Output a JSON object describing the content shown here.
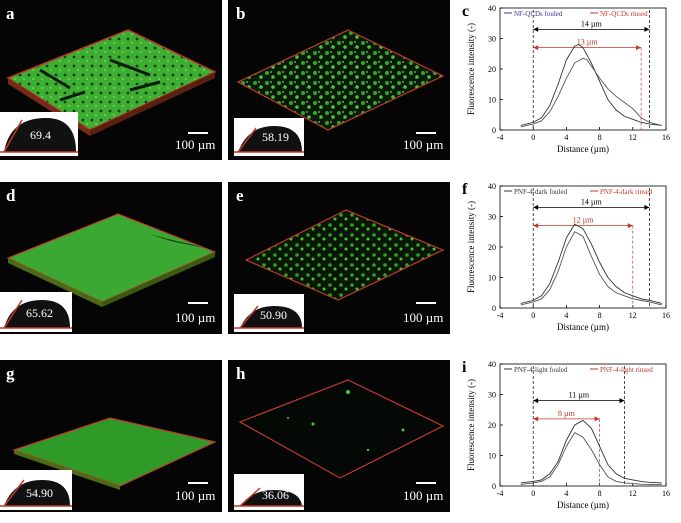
{
  "images": {
    "a": {
      "label": "a",
      "angle": "69.4",
      "scale": "100 µm"
    },
    "b": {
      "label": "b",
      "angle": "58.19",
      "scale": "100 µm"
    },
    "d": {
      "label": "d",
      "angle": "65.62",
      "scale": "100 µm"
    },
    "e": {
      "label": "e",
      "angle": "50.90",
      "scale": "100 µm"
    },
    "g": {
      "label": "g",
      "angle": "54.90",
      "scale": "100 µm"
    },
    "h": {
      "label": "h",
      "angle": "36.06",
      "scale": "100 µm"
    }
  },
  "chart_data": [
    {
      "panel": "c",
      "type": "line",
      "xlabel": "Distance (µm)",
      "ylabel": "Fluorescence intensity (-)",
      "xlim": [
        -4,
        16
      ],
      "ylim": [
        0,
        40
      ],
      "xticks": [
        -4,
        0,
        4,
        8,
        12,
        16
      ],
      "yticks": [
        0,
        10,
        20,
        30,
        40
      ],
      "colors": {
        "fouled": "#333399",
        "rinsed": "#c0392b"
      },
      "series": [
        {
          "name": "NF-QCDs fouled",
          "x": [
            -1.5,
            0,
            1,
            2,
            3,
            4,
            5,
            5.5,
            6,
            7,
            8,
            9,
            10,
            11,
            12,
            13,
            14,
            15.5
          ],
          "y": [
            1.5,
            2.5,
            4,
            8,
            15,
            23,
            27.5,
            28,
            27,
            22,
            16,
            10,
            6.5,
            4.5,
            3.5,
            2.5,
            2,
            1.5
          ]
        },
        {
          "name": "NF-QCDs rinsed",
          "x": [
            -1.5,
            0,
            1,
            2,
            3,
            4,
            5,
            6,
            6.5,
            7,
            8,
            9,
            10,
            11,
            12,
            13,
            14,
            15.5
          ],
          "y": [
            1,
            2,
            3,
            6,
            11,
            17,
            22,
            23.5,
            23,
            21,
            17,
            13.5,
            11,
            9,
            7,
            4,
            2.5,
            1.5
          ]
        }
      ],
      "spans": [
        {
          "label": "14 µm",
          "from": 0,
          "to": 14,
          "y": 33,
          "color": "#000000"
        },
        {
          "label": "13 µm",
          "from": 0,
          "to": 13,
          "y": 27,
          "color": "#c0392b"
        }
      ]
    },
    {
      "panel": "f",
      "type": "line",
      "xlabel": "Distance (µm)",
      "ylabel": "Fluorescence intensity (-)",
      "xlim": [
        -4,
        16
      ],
      "ylim": [
        0,
        40
      ],
      "xticks": [
        -4,
        0,
        4,
        8,
        12,
        16
      ],
      "yticks": [
        0,
        10,
        20,
        30,
        40
      ],
      "colors": {
        "fouled": "#333333",
        "rinsed": "#c0392b"
      },
      "series": [
        {
          "name": "PNF-4-dark fouled",
          "x": [
            -1.5,
            0,
            1,
            2,
            3,
            4,
            5,
            6,
            7,
            8,
            9,
            10,
            11,
            12,
            13,
            14,
            15.5
          ],
          "y": [
            1.5,
            2.5,
            4,
            8,
            15,
            23,
            27.5,
            26,
            21,
            15,
            10,
            7,
            5,
            4,
            3,
            2.5,
            1.5
          ]
        },
        {
          "name": "PNF-4-dark rinsed",
          "x": [
            -1.5,
            0,
            1,
            2,
            3,
            4,
            5,
            6,
            7,
            8,
            9,
            10,
            11,
            12,
            13,
            14,
            15.5
          ],
          "y": [
            1,
            2,
            3,
            6,
            12,
            20,
            25,
            23.5,
            17,
            11,
            7,
            5,
            4,
            3,
            2.5,
            2,
            1
          ]
        }
      ],
      "spans": [
        {
          "label": "14 µm",
          "from": 0,
          "to": 14,
          "y": 33,
          "color": "#000000"
        },
        {
          "label": "12 µm",
          "from": 0,
          "to": 12,
          "y": 27,
          "color": "#c0392b"
        }
      ]
    },
    {
      "panel": "i",
      "type": "line",
      "xlabel": "Distance (µm)",
      "ylabel": "Fluorescence intensity (-)",
      "xlim": [
        -4,
        16
      ],
      "ylim": [
        0,
        40
      ],
      "xticks": [
        -4,
        0,
        4,
        8,
        12,
        16
      ],
      "yticks": [
        0,
        10,
        20,
        30,
        40
      ],
      "colors": {
        "fouled": "#333333",
        "rinsed": "#c0392b"
      },
      "series": [
        {
          "name": "PNF-4-light fouled",
          "x": [
            -1.5,
            0,
            1,
            2,
            3,
            4,
            5,
            6,
            7,
            8,
            9,
            10,
            11,
            12,
            13,
            14,
            15.5
          ],
          "y": [
            1,
            1.5,
            2,
            4,
            8,
            15,
            20,
            21.5,
            19,
            13,
            7,
            4,
            2.5,
            2,
            1.5,
            1.2,
            1
          ]
        },
        {
          "name": "PNF-4-light rinsed",
          "x": [
            -1.5,
            0,
            1,
            2,
            3,
            4,
            5,
            6,
            7,
            8,
            9,
            10,
            11,
            12,
            13,
            14,
            15.5
          ],
          "y": [
            0.5,
            1,
            1.5,
            3,
            7,
            13,
            17.5,
            16,
            12,
            7,
            3,
            1.5,
            1,
            0.8,
            0.6,
            0.5,
            0.5
          ]
        }
      ],
      "spans": [
        {
          "label": "11 µm",
          "from": 0,
          "to": 11,
          "y": 28,
          "color": "#000000"
        },
        {
          "label": "8 µm",
          "from": 0,
          "to": 8,
          "y": 22,
          "color": "#c0392b"
        }
      ]
    }
  ],
  "panel_labels": {
    "c": "c",
    "f": "f",
    "i": "i"
  }
}
